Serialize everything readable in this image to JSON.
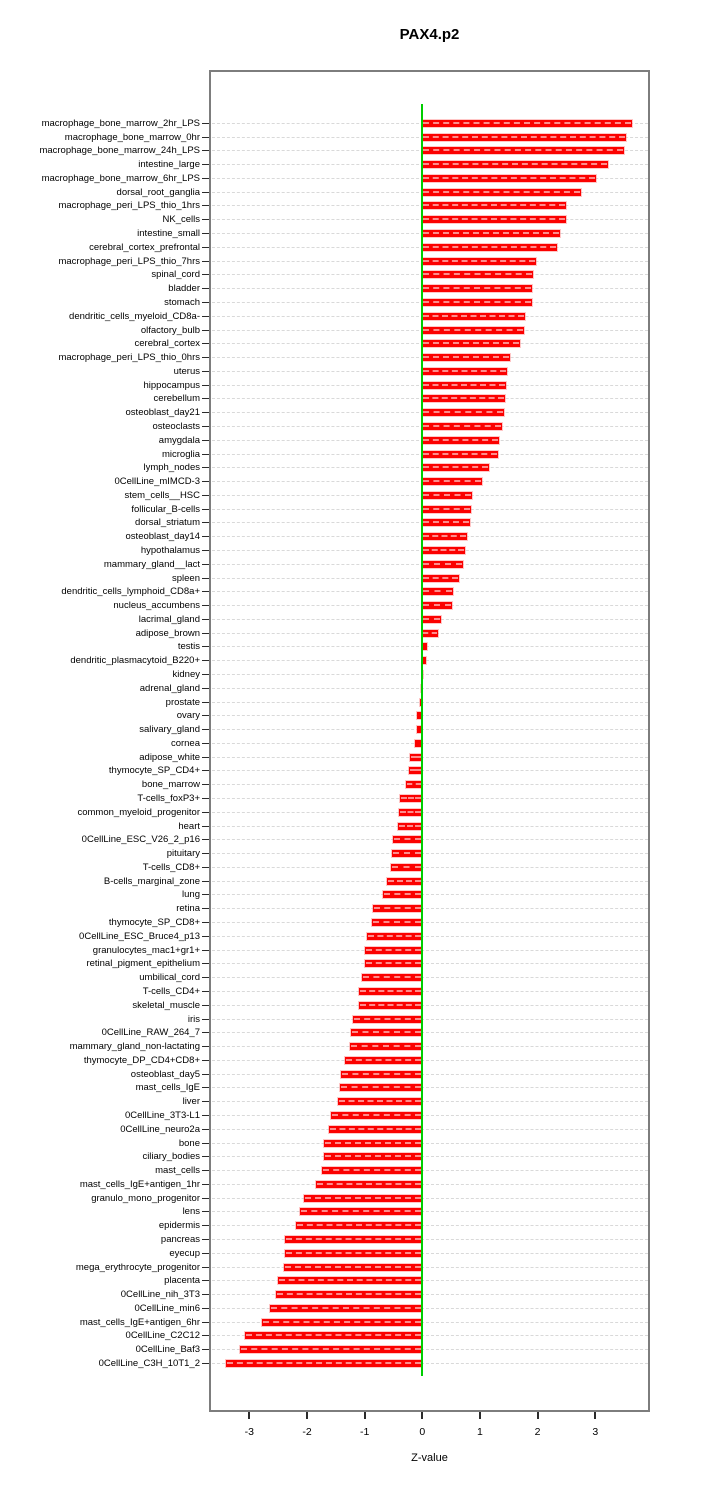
{
  "title": "PAX4.p2",
  "xlabel": "Z-value",
  "chart_data": {
    "type": "bar",
    "orientation": "horizontal",
    "title": "PAX4.p2",
    "xlabel": "Z-value",
    "ylabel": "",
    "xlim": [
      -3.7,
      3.95
    ],
    "x_ticks": [
      -3,
      -2,
      -1,
      0,
      1,
      2,
      3
    ],
    "x_tick_labels": [
      "-3",
      "-2",
      "-1",
      "0",
      "1",
      "2",
      "3"
    ],
    "grid": true,
    "legend": "none",
    "bar_color": "#fb0100",
    "zero_line_color": "#00cd00",
    "categories": [
      "macrophage_bone_marrow_2hr_LPS",
      "macrophage_bone_marrow_0hr",
      "macrophage_bone_marrow_24h_LPS",
      "intestine_large",
      "macrophage_bone_marrow_6hr_LPS",
      "dorsal_root_ganglia",
      "macrophage_peri_LPS_thio_1hrs",
      "NK_cells",
      "intestine_small",
      "cerebral_cortex_prefrontal",
      "macrophage_peri_LPS_thio_7hrs",
      "spinal_cord",
      "bladder",
      "stomach",
      "dendritic_cells_myeloid_CD8a-",
      "olfactory_bulb",
      "cerebral_cortex",
      "macrophage_peri_LPS_thio_0hrs",
      "uterus",
      "hippocampus",
      "cerebellum",
      "osteoblast_day21",
      "osteoclasts",
      "amygdala",
      "microglia",
      "lymph_nodes",
      "0CellLine_mIMCD-3",
      "stem_cells__HSC",
      "follicular_B-cells",
      "dorsal_striatum",
      "osteoblast_day14",
      "hypothalamus",
      "mammary_gland__lact",
      "spleen",
      "dendritic_cells_lymphoid_CD8a+",
      "nucleus_accumbens",
      "lacrimal_gland",
      "adipose_brown",
      "testis",
      "dendritic_plasmacytoid_B220+",
      "kidney",
      "adrenal_gland",
      "prostate",
      "ovary",
      "salivary_gland",
      "cornea",
      "adipose_white",
      "thymocyte_SP_CD4+",
      "bone_marrow",
      "T-cells_foxP3+",
      "common_myeloid_progenitor",
      "heart",
      "0CellLine_ESC_V26_2_p16",
      "pituitary",
      "T-cells_CD8+",
      "B-cells_marginal_zone",
      "lung",
      "retina",
      "thymocyte_SP_CD8+",
      "0CellLine_ESC_Bruce4_p13",
      "granulocytes_mac1+gr1+",
      "retinal_pigment_epithelium",
      "umbilical_cord",
      "T-cells_CD4+",
      "skeletal_muscle",
      "iris",
      "0CellLine_RAW_264_7",
      "mammary_gland_non-lactating",
      "thymocyte_DP_CD4+CD8+",
      "osteoblast_day5",
      "mast_cells_IgE",
      "liver",
      "0CellLine_3T3-L1",
      "0CellLine_neuro2a",
      "bone",
      "ciliary_bodies",
      "mast_cells",
      "mast_cells_IgE+antigen_1hr",
      "granulo_mono_progenitor",
      "lens",
      "epidermis",
      "pancreas",
      "eyecup",
      "mega_erythrocyte_progenitor",
      "placenta",
      "0CellLine_nih_3T3",
      "0CellLine_min6",
      "mast_cells_IgE+antigen_6hr",
      "0CellLine_C2C12",
      "0CellLine_Baf3",
      "0CellLine_C3H_10T1_2"
    ],
    "values": [
      3.63,
      3.53,
      3.5,
      3.23,
      3.02,
      2.75,
      2.5,
      2.49,
      2.39,
      2.34,
      1.97,
      1.92,
      1.91,
      1.9,
      1.79,
      1.77,
      1.7,
      1.53,
      1.47,
      1.46,
      1.44,
      1.41,
      1.38,
      1.33,
      1.32,
      1.16,
      1.04,
      0.87,
      0.85,
      0.83,
      0.77,
      0.74,
      0.7,
      0.63,
      0.54,
      0.52,
      0.33,
      0.28,
      0.08,
      0.06,
      0.01,
      -0.02,
      -0.04,
      -0.09,
      -0.1,
      -0.13,
      -0.22,
      -0.23,
      -0.28,
      -0.39,
      -0.41,
      -0.42,
      -0.5,
      -0.53,
      -0.54,
      -0.61,
      -0.68,
      -0.86,
      -0.87,
      -0.96,
      -0.99,
      -1.0,
      -1.05,
      -1.09,
      -1.1,
      -1.21,
      -1.24,
      -1.26,
      -1.34,
      -1.41,
      -1.42,
      -1.47,
      -1.59,
      -1.61,
      -1.7,
      -1.71,
      -1.74,
      -1.85,
      -2.06,
      -2.13,
      -2.19,
      -2.38,
      -2.39,
      -2.4,
      -2.51,
      -2.54,
      -2.65,
      -2.78,
      -3.07,
      -3.17,
      -3.4
    ]
  }
}
